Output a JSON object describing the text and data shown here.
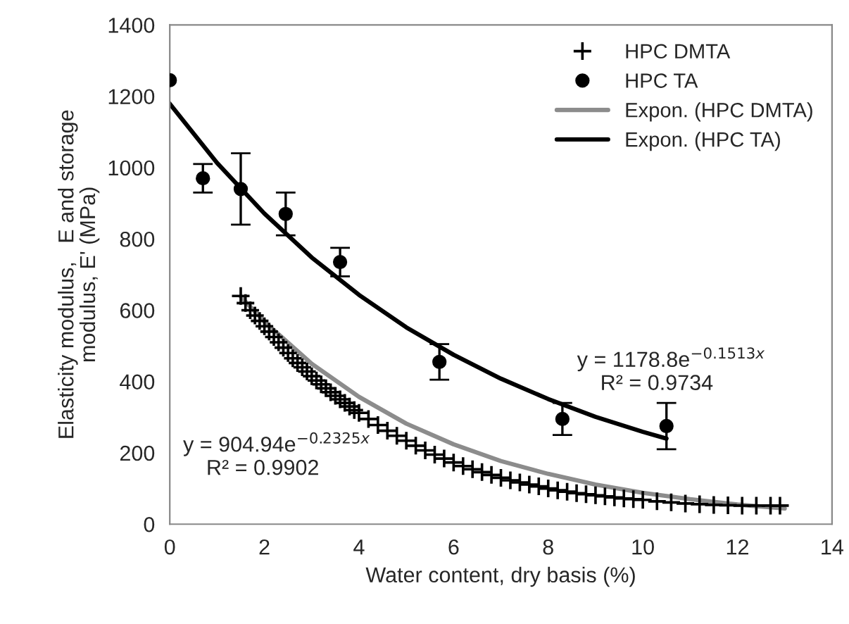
{
  "chart_data": {
    "type": "scatter",
    "xlabel": "Water content, dry basis (%)",
    "ylabel": "Elasticity modulus,   E and storage\nmodulus, E' (MPa)",
    "xlim": [
      0,
      14
    ],
    "ylim": [
      0,
      1400
    ],
    "xticks": [
      0,
      2,
      4,
      6,
      8,
      10,
      12,
      14
    ],
    "yticks": [
      0,
      200,
      400,
      600,
      800,
      1000,
      1200,
      1400
    ],
    "grid": false,
    "legend": "top right",
    "series": [
      {
        "name": "HPC DMTA",
        "type": "scatter",
        "marker": "cross",
        "color": "#000000",
        "x": [
          1.5,
          1.6,
          1.7,
          1.8,
          1.9,
          2.0,
          2.1,
          2.2,
          2.3,
          2.4,
          2.5,
          2.6,
          2.7,
          2.8,
          2.9,
          3.0,
          3.1,
          3.2,
          3.3,
          3.4,
          3.5,
          3.6,
          3.7,
          3.8,
          3.9,
          4.0,
          4.2,
          4.4,
          4.6,
          4.8,
          5.0,
          5.2,
          5.4,
          5.6,
          5.8,
          6.0,
          6.2,
          6.4,
          6.6,
          6.8,
          7.0,
          7.2,
          7.4,
          7.6,
          7.8,
          8.0,
          8.2,
          8.4,
          8.6,
          8.8,
          9.0,
          9.2,
          9.4,
          9.6,
          9.8,
          10.0,
          10.3,
          10.6,
          10.9,
          11.2,
          11.5,
          11.8,
          12.1,
          12.4,
          12.7,
          12.9
        ],
        "values": [
          640,
          620,
          600,
          585,
          570,
          555,
          540,
          525,
          510,
          495,
          480,
          465,
          452,
          440,
          428,
          415,
          403,
          392,
          381,
          370,
          360,
          350,
          340,
          330,
          320,
          312,
          295,
          278,
          262,
          248,
          234,
          220,
          207,
          195,
          184,
          173,
          163,
          154,
          146,
          138,
          130,
          123,
          117,
          111,
          106,
          100,
          95,
          91,
          87,
          84,
          81,
          78,
          75,
          72,
          70,
          68,
          64,
          61,
          58,
          56,
          54,
          53,
          52,
          52,
          52,
          52
        ]
      },
      {
        "name": "HPC TA",
        "type": "scatter",
        "marker": "circle",
        "color": "#000000",
        "x": [
          0,
          0.7,
          1.5,
          2.45,
          3.6,
          5.7,
          8.3,
          10.5
        ],
        "values": [
          1245,
          970,
          940,
          870,
          735,
          455,
          295,
          275
        ],
        "errors": [
          null,
          40,
          100,
          60,
          40,
          50,
          45,
          65
        ]
      },
      {
        "name": "Expon. (HPC DMTA)",
        "type": "line",
        "color": "#8c8c8c",
        "x": [
          1.5,
          2,
          3,
          4,
          5,
          6,
          7,
          8,
          9,
          10,
          11,
          12,
          13
        ],
        "values": [
          638,
          568,
          450,
          357,
          282,
          224,
          177,
          141,
          111,
          88,
          70,
          55,
          44
        ]
      },
      {
        "name": "Expon. (HPC TA)",
        "type": "line",
        "color": "#000000",
        "x": [
          0,
          1,
          2,
          3,
          4,
          5,
          6,
          7,
          8,
          9,
          10,
          10.5
        ],
        "values": [
          1179,
          1013,
          871,
          748,
          643,
          552,
          475,
          408,
          351,
          301,
          259,
          240
        ]
      }
    ],
    "annotations": [
      "y = 1178.8e$^{−0.1513x}$",
      "R² = 0.9734",
      "y = 904.94e$^{−0.2325x}$",
      "R² = 0.9902"
    ]
  }
}
